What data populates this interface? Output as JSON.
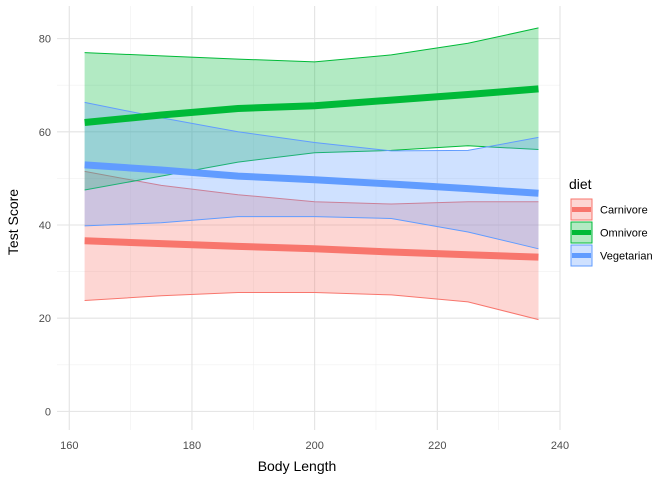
{
  "chart_data": {
    "type": "area",
    "xlabel": "Body Length",
    "ylabel": "Test Score",
    "xlim": [
      158,
      240
    ],
    "ylim": [
      -4,
      87
    ],
    "x_ticks": [
      160,
      180,
      200,
      220,
      240
    ],
    "x_tick_labels": [
      "160",
      "180",
      "200",
      "220",
      "240"
    ],
    "y_ticks": [
      0,
      20,
      40,
      60,
      80
    ],
    "y_tick_labels": [
      "0",
      "20",
      "40",
      "60",
      "80"
    ],
    "grid": true,
    "legend": {
      "title": "diet",
      "placement": "right",
      "entries": [
        "Carnivore",
        "Omnivore",
        "Vegetarian"
      ]
    },
    "x": [
      162.5,
      175,
      187.5,
      200,
      212.5,
      225,
      236.5
    ],
    "series": [
      {
        "name": "Carnivore",
        "color": "#F8766D",
        "fill": "#F8766D",
        "fit": [
          36.6,
          36.0,
          35.4,
          34.9,
          34.2,
          33.6,
          33.1
        ],
        "upper": [
          51.5,
          48.5,
          46.5,
          45.0,
          44.5,
          45.0,
          45.0
        ],
        "lower": [
          23.8,
          24.8,
          25.5,
          25.5,
          25.0,
          23.5,
          19.7
        ]
      },
      {
        "name": "Omnivore",
        "color": "#00BA38",
        "fill": "#00BA38",
        "fit": [
          62.0,
          63.6,
          65.0,
          65.6,
          66.8,
          68.0,
          69.2
        ],
        "upper": [
          77.0,
          76.3,
          75.6,
          75.0,
          76.5,
          79.0,
          82.3
        ],
        "lower": [
          47.5,
          50.5,
          53.5,
          55.5,
          56.0,
          57.0,
          56.2
        ]
      },
      {
        "name": "Vegetarian",
        "color": "#619CFF",
        "fill": "#619CFF",
        "fit": [
          52.9,
          51.8,
          50.5,
          49.7,
          48.8,
          47.8,
          46.8
        ],
        "upper": [
          66.3,
          63.0,
          60.0,
          57.7,
          55.9,
          56.0,
          58.8
        ],
        "lower": [
          39.8,
          40.5,
          41.8,
          41.8,
          41.4,
          38.5,
          34.9
        ]
      }
    ]
  }
}
